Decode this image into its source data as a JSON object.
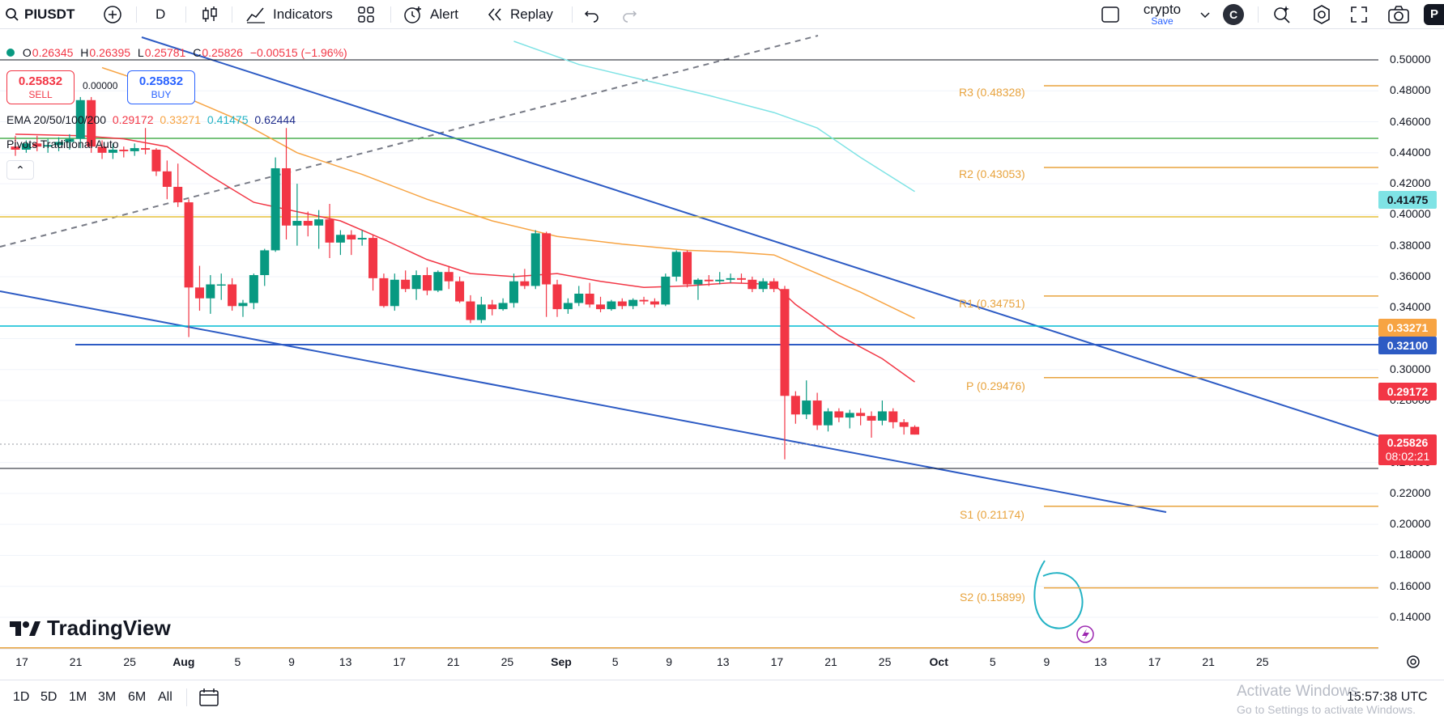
{
  "toolbar": {
    "symbol": "PIUSDT",
    "interval": "D",
    "indicators_label": "Indicators",
    "alert_label": "Alert",
    "replay_label": "Replay",
    "layout_name": "crypto",
    "layout_save": "Save",
    "avatar_letter": "C",
    "publish_label": "P"
  },
  "legend": {
    "open_label": "O",
    "open": "0.26345",
    "high_label": "H",
    "high": "0.26395",
    "low_label": "L",
    "low": "0.25781",
    "close_label": "C",
    "close": "0.25826",
    "change": "−0.00515 (−1.96%)",
    "sell_price": "0.25832",
    "sell_label": "SELL",
    "spread": "0.00000",
    "buy_price": "0.25832",
    "buy_label": "BUY",
    "ema_label": "EMA 20/50/100/200",
    "ema20": "0.29172",
    "ema50": "0.33271",
    "ema100": "0.41475",
    "ema200": "0.62444",
    "pivots_label": "Pivots Traditional Auto"
  },
  "colors": {
    "up": "#089981",
    "down": "#f23645",
    "ema20": "#f23645",
    "ema50": "#f7a443",
    "ema100": "#7fe3e5",
    "ema200": "#1e2b8b",
    "pivot": "#e8a33d",
    "trendline": "#2d5bc4"
  },
  "pivots": {
    "r3": "R3 (0.48328)",
    "r2": "R2 (0.43053)",
    "r1": "R1 (0.34751)",
    "p": "P (0.29476)",
    "s1": "S1 (0.21174)",
    "s2": "S2 (0.15899)"
  },
  "price_tags": {
    "ema100": "0.41475",
    "ema50": "0.33271",
    "level": "0.32100",
    "ema20": "0.29172",
    "last": "0.25826",
    "countdown": "08:02:21"
  },
  "price_axis": [
    "0.50000",
    "0.48000",
    "0.46000",
    "0.44000",
    "0.42000",
    "0.40000",
    "0.38000",
    "0.36000",
    "0.34000",
    "0.32000",
    "0.30000",
    "0.28000",
    "0.24000",
    "0.22000",
    "0.20000",
    "0.18000",
    "0.16000",
    "0.14000"
  ],
  "time_axis": [
    "17",
    "21",
    "25",
    "Aug",
    "5",
    "9",
    "13",
    "17",
    "21",
    "25",
    "Sep",
    "5",
    "9",
    "13",
    "17",
    "21",
    "25",
    "Oct",
    "5",
    "9",
    "13",
    "17",
    "21",
    "25"
  ],
  "chart_data": {
    "type": "candlestick",
    "symbol": "PIUSDT",
    "interval": "D",
    "ylim": [
      0.13,
      0.505
    ],
    "candles": [
      {
        "o": 0.444,
        "h": 0.451,
        "l": 0.438,
        "c": 0.442
      },
      {
        "o": 0.442,
        "h": 0.448,
        "l": 0.44,
        "c": 0.446
      },
      {
        "o": 0.446,
        "h": 0.451,
        "l": 0.441,
        "c": 0.444
      },
      {
        "o": 0.444,
        "h": 0.449,
        "l": 0.44,
        "c": 0.445
      },
      {
        "o": 0.445,
        "h": 0.45,
        "l": 0.441,
        "c": 0.447
      },
      {
        "o": 0.447,
        "h": 0.452,
        "l": 0.442,
        "c": 0.449
      },
      {
        "o": 0.449,
        "h": 0.476,
        "l": 0.443,
        "c": 0.474
      },
      {
        "o": 0.474,
        "h": 0.476,
        "l": 0.44,
        "c": 0.444
      },
      {
        "o": 0.444,
        "h": 0.448,
        "l": 0.436,
        "c": 0.44
      },
      {
        "o": 0.44,
        "h": 0.446,
        "l": 0.436,
        "c": 0.442
      },
      {
        "o": 0.442,
        "h": 0.444,
        "l": 0.437,
        "c": 0.441
      },
      {
        "o": 0.441,
        "h": 0.446,
        "l": 0.438,
        "c": 0.443
      },
      {
        "o": 0.443,
        "h": 0.456,
        "l": 0.439,
        "c": 0.442
      },
      {
        "o": 0.442,
        "h": 0.443,
        "l": 0.425,
        "c": 0.428
      },
      {
        "o": 0.428,
        "h": 0.435,
        "l": 0.41,
        "c": 0.418
      },
      {
        "o": 0.418,
        "h": 0.433,
        "l": 0.405,
        "c": 0.408
      },
      {
        "o": 0.408,
        "h": 0.41,
        "l": 0.321,
        "c": 0.353
      },
      {
        "o": 0.353,
        "h": 0.367,
        "l": 0.338,
        "c": 0.346
      },
      {
        "o": 0.346,
        "h": 0.361,
        "l": 0.336,
        "c": 0.355
      },
      {
        "o": 0.355,
        "h": 0.362,
        "l": 0.345,
        "c": 0.355
      },
      {
        "o": 0.355,
        "h": 0.359,
        "l": 0.338,
        "c": 0.341
      },
      {
        "o": 0.341,
        "h": 0.345,
        "l": 0.334,
        "c": 0.343
      },
      {
        "o": 0.343,
        "h": 0.362,
        "l": 0.339,
        "c": 0.361
      },
      {
        "o": 0.361,
        "h": 0.378,
        "l": 0.354,
        "c": 0.377
      },
      {
        "o": 0.377,
        "h": 0.437,
        "l": 0.376,
        "c": 0.43
      },
      {
        "o": 0.43,
        "h": 0.456,
        "l": 0.384,
        "c": 0.393
      },
      {
        "o": 0.393,
        "h": 0.42,
        "l": 0.38,
        "c": 0.396
      },
      {
        "o": 0.396,
        "h": 0.402,
        "l": 0.386,
        "c": 0.393
      },
      {
        "o": 0.393,
        "h": 0.403,
        "l": 0.378,
        "c": 0.397
      },
      {
        "o": 0.397,
        "h": 0.407,
        "l": 0.372,
        "c": 0.382
      },
      {
        "o": 0.382,
        "h": 0.39,
        "l": 0.374,
        "c": 0.387
      },
      {
        "o": 0.387,
        "h": 0.39,
        "l": 0.374,
        "c": 0.384
      },
      {
        "o": 0.384,
        "h": 0.39,
        "l": 0.38,
        "c": 0.385
      },
      {
        "o": 0.385,
        "h": 0.387,
        "l": 0.351,
        "c": 0.359
      },
      {
        "o": 0.359,
        "h": 0.362,
        "l": 0.34,
        "c": 0.341
      },
      {
        "o": 0.341,
        "h": 0.362,
        "l": 0.338,
        "c": 0.358
      },
      {
        "o": 0.358,
        "h": 0.364,
        "l": 0.35,
        "c": 0.352
      },
      {
        "o": 0.352,
        "h": 0.364,
        "l": 0.345,
        "c": 0.361
      },
      {
        "o": 0.361,
        "h": 0.366,
        "l": 0.348,
        "c": 0.351
      },
      {
        "o": 0.351,
        "h": 0.364,
        "l": 0.35,
        "c": 0.363
      },
      {
        "o": 0.363,
        "h": 0.367,
        "l": 0.352,
        "c": 0.357
      },
      {
        "o": 0.357,
        "h": 0.36,
        "l": 0.343,
        "c": 0.344
      },
      {
        "o": 0.344,
        "h": 0.348,
        "l": 0.33,
        "c": 0.332
      },
      {
        "o": 0.332,
        "h": 0.347,
        "l": 0.33,
        "c": 0.342
      },
      {
        "o": 0.342,
        "h": 0.345,
        "l": 0.335,
        "c": 0.339
      },
      {
        "o": 0.339,
        "h": 0.346,
        "l": 0.338,
        "c": 0.343
      },
      {
        "o": 0.343,
        "h": 0.362,
        "l": 0.34,
        "c": 0.357
      },
      {
        "o": 0.357,
        "h": 0.365,
        "l": 0.352,
        "c": 0.354
      },
      {
        "o": 0.354,
        "h": 0.39,
        "l": 0.352,
        "c": 0.388
      },
      {
        "o": 0.388,
        "h": 0.389,
        "l": 0.334,
        "c": 0.355
      },
      {
        "o": 0.355,
        "h": 0.358,
        "l": 0.334,
        "c": 0.339
      },
      {
        "o": 0.339,
        "h": 0.346,
        "l": 0.336,
        "c": 0.343
      },
      {
        "o": 0.343,
        "h": 0.354,
        "l": 0.341,
        "c": 0.349
      },
      {
        "o": 0.349,
        "h": 0.356,
        "l": 0.34,
        "c": 0.342
      },
      {
        "o": 0.342,
        "h": 0.347,
        "l": 0.337,
        "c": 0.339
      },
      {
        "o": 0.339,
        "h": 0.345,
        "l": 0.338,
        "c": 0.344
      },
      {
        "o": 0.344,
        "h": 0.346,
        "l": 0.339,
        "c": 0.341
      },
      {
        "o": 0.341,
        "h": 0.346,
        "l": 0.339,
        "c": 0.345
      },
      {
        "o": 0.345,
        "h": 0.347,
        "l": 0.342,
        "c": 0.344
      },
      {
        "o": 0.344,
        "h": 0.346,
        "l": 0.34,
        "c": 0.342
      },
      {
        "o": 0.342,
        "h": 0.362,
        "l": 0.341,
        "c": 0.36
      },
      {
        "o": 0.36,
        "h": 0.377,
        "l": 0.357,
        "c": 0.376
      },
      {
        "o": 0.376,
        "h": 0.377,
        "l": 0.353,
        "c": 0.355
      },
      {
        "o": 0.355,
        "h": 0.359,
        "l": 0.345,
        "c": 0.358
      },
      {
        "o": 0.358,
        "h": 0.361,
        "l": 0.354,
        "c": 0.357
      },
      {
        "o": 0.357,
        "h": 0.363,
        "l": 0.355,
        "c": 0.358
      },
      {
        "o": 0.358,
        "h": 0.362,
        "l": 0.356,
        "c": 0.359
      },
      {
        "o": 0.359,
        "h": 0.362,
        "l": 0.356,
        "c": 0.358
      },
      {
        "o": 0.358,
        "h": 0.36,
        "l": 0.35,
        "c": 0.352
      },
      {
        "o": 0.352,
        "h": 0.359,
        "l": 0.35,
        "c": 0.357
      },
      {
        "o": 0.357,
        "h": 0.359,
        "l": 0.35,
        "c": 0.352
      },
      {
        "o": 0.352,
        "h": 0.354,
        "l": 0.242,
        "c": 0.283
      },
      {
        "o": 0.283,
        "h": 0.286,
        "l": 0.265,
        "c": 0.271
      },
      {
        "o": 0.271,
        "h": 0.293,
        "l": 0.268,
        "c": 0.28
      },
      {
        "o": 0.28,
        "h": 0.285,
        "l": 0.261,
        "c": 0.264
      },
      {
        "o": 0.264,
        "h": 0.275,
        "l": 0.26,
        "c": 0.273
      },
      {
        "o": 0.273,
        "h": 0.275,
        "l": 0.266,
        "c": 0.269
      },
      {
        "o": 0.269,
        "h": 0.274,
        "l": 0.262,
        "c": 0.272
      },
      {
        "o": 0.272,
        "h": 0.275,
        "l": 0.264,
        "c": 0.27
      },
      {
        "o": 0.27,
        "h": 0.273,
        "l": 0.256,
        "c": 0.267
      },
      {
        "o": 0.267,
        "h": 0.28,
        "l": 0.264,
        "c": 0.273
      },
      {
        "o": 0.273,
        "h": 0.275,
        "l": 0.262,
        "c": 0.266
      },
      {
        "o": 0.266,
        "h": 0.268,
        "l": 0.258,
        "c": 0.263
      },
      {
        "o": 0.263,
        "h": 0.264,
        "l": 0.258,
        "c": 0.258
      }
    ],
    "ema20": [
      [
        0,
        0.452
      ],
      [
        6,
        0.451
      ],
      [
        10,
        0.449
      ],
      [
        14,
        0.444
      ],
      [
        18,
        0.425
      ],
      [
        22,
        0.408
      ],
      [
        26,
        0.402
      ],
      [
        30,
        0.396
      ],
      [
        34,
        0.384
      ],
      [
        38,
        0.371
      ],
      [
        42,
        0.362
      ],
      [
        46,
        0.36
      ],
      [
        50,
        0.362
      ],
      [
        54,
        0.357
      ],
      [
        58,
        0.353
      ],
      [
        62,
        0.354
      ],
      [
        66,
        0.356
      ],
      [
        70,
        0.355
      ],
      [
        72,
        0.342
      ],
      [
        76,
        0.322
      ],
      [
        80,
        0.307
      ],
      [
        83,
        0.292
      ]
    ],
    "ema50": [
      [
        8,
        0.495
      ],
      [
        14,
        0.481
      ],
      [
        20,
        0.463
      ],
      [
        26,
        0.44
      ],
      [
        32,
        0.426
      ],
      [
        38,
        0.41
      ],
      [
        44,
        0.396
      ],
      [
        50,
        0.386
      ],
      [
        56,
        0.381
      ],
      [
        62,
        0.377
      ],
      [
        66,
        0.376
      ],
      [
        70,
        0.374
      ],
      [
        74,
        0.362
      ],
      [
        78,
        0.35
      ],
      [
        83,
        0.333
      ]
    ],
    "ema100": [
      [
        46,
        0.512
      ],
      [
        52,
        0.497
      ],
      [
        58,
        0.487
      ],
      [
        64,
        0.477
      ],
      [
        70,
        0.466
      ],
      [
        74,
        0.456
      ],
      [
        78,
        0.437
      ],
      [
        83,
        0.415
      ]
    ],
    "pivot_levels": {
      "R3": 0.48328,
      "R2": 0.43053,
      "R1": 0.34751,
      "P": 0.29476,
      "S1": 0.21174,
      "S2": 0.15899
    },
    "horizontal_levels": [
      0.504,
      0.455,
      0.405,
      0.3327,
      0.321,
      0.2405
    ],
    "last_price": 0.25826
  }
}
